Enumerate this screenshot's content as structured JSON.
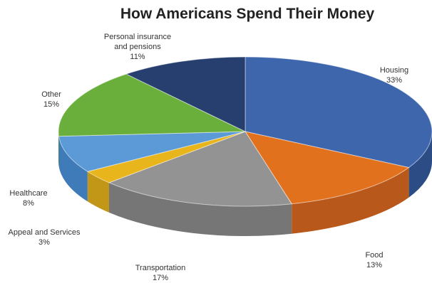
{
  "chart_data": {
    "type": "pie",
    "title": "How Americans Spend Their Money",
    "slices": [
      {
        "label": [
          "Housing"
        ],
        "percent_label": "33%",
        "value": 33,
        "color": "#3e66ad",
        "side_color": "#2c4c86"
      },
      {
        "label": [
          "Food"
        ],
        "percent_label": "13%",
        "value": 13,
        "color": "#e2711e",
        "side_color": "#b9581b"
      },
      {
        "label": [
          "Transportation"
        ],
        "percent_label": "17%",
        "value": 17,
        "color": "#939393",
        "side_color": "#767676"
      },
      {
        "label": [
          "Appeal and Services"
        ],
        "percent_label": "3%",
        "value": 3,
        "color": "#e8b51d",
        "side_color": "#c29616"
      },
      {
        "label": [
          "Healthcare"
        ],
        "percent_label": "8%",
        "value": 8,
        "color": "#5b9ad6",
        "side_color": "#3f7bb8"
      },
      {
        "label": [
          "Other"
        ],
        "percent_label": "15%",
        "value": 15,
        "color": "#6aaf3c",
        "side_color": "#528a2d"
      },
      {
        "label": [
          "Personal insurance",
          "and pensions"
        ],
        "percent_label": "11%",
        "value": 11,
        "color": "#263f6e",
        "side_color": "#1b2f55"
      }
    ]
  }
}
